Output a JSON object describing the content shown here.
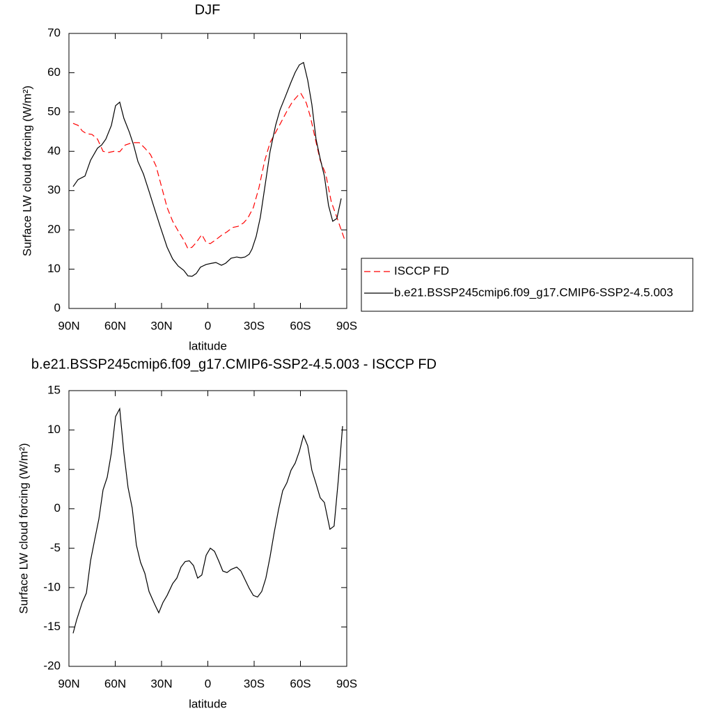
{
  "chart_data": [
    {
      "type": "line",
      "title": "DJF",
      "xlabel": "latitude",
      "ylabel": "Surface LW cloud forcing (W/m²)",
      "xlim": [
        90,
        -90
      ],
      "ylim": [
        0,
        70
      ],
      "xticks": [
        {
          "value": 90,
          "label": "90N"
        },
        {
          "value": 60,
          "label": "60N"
        },
        {
          "value": 30,
          "label": "30N"
        },
        0,
        {
          "value": -30,
          "label": "30S"
        },
        {
          "value": -60,
          "label": "60S"
        },
        {
          "value": -90,
          "label": "90S"
        }
      ],
      "yticks": [
        0,
        10,
        20,
        30,
        40,
        50,
        60,
        70
      ],
      "series": [
        {
          "name": "ISCCP FD",
          "color": "#ff0000",
          "line_style": "dashed",
          "x": [
            87.3,
            84.1,
            81.4,
            78.7,
            75.1,
            71.5,
            67.9,
            64.3,
            60.7,
            57.1,
            53.5,
            49.0,
            44.4,
            40.8,
            37.2,
            33.6,
            30.0,
            26.4,
            22.8,
            19.2,
            15.6,
            12.9,
            10.2,
            7.5,
            3.9,
            1.1,
            -1.6,
            -5.2,
            -8.8,
            -12.4,
            -16.0,
            -19.6,
            -23.2,
            -25.9,
            -29.5,
            -33.1,
            -36.7,
            -40.3,
            -43.9,
            -47.6,
            -51.2,
            -54.8,
            -58.4,
            -60.2,
            -63.8,
            -66.5,
            -69.2,
            -72.8,
            -76.4,
            -80.0,
            -83.6,
            -86.4,
            -89.1
          ],
          "values": [
            47.1,
            46.6,
            45.2,
            44.5,
            44.3,
            43.1,
            40.0,
            39.7,
            40.0,
            39.9,
            41.6,
            42.2,
            42.2,
            40.8,
            39.2,
            36.3,
            31.0,
            25.7,
            22.2,
            19.7,
            17.4,
            15.2,
            15.6,
            16.8,
            18.8,
            16.8,
            16.5,
            17.5,
            18.6,
            19.5,
            20.6,
            20.9,
            21.8,
            23.0,
            25.7,
            30.7,
            37.4,
            42.2,
            44.8,
            47.5,
            50.2,
            52.6,
            54.2,
            54.8,
            52.3,
            48.7,
            43.9,
            37.7,
            34.2,
            27.1,
            23.2,
            20.0,
            17.0
          ]
        },
        {
          "name": "b.e21.BSSP245cmip6.f09_g17.CMIP6-SSP2-4.5.003",
          "color": "#000000",
          "line_style": "solid",
          "x": [
            87.3,
            84.1,
            79.6,
            76.0,
            71.5,
            68.8,
            66.1,
            62.5,
            59.8,
            57.1,
            54.4,
            50.8,
            48.1,
            45.3,
            41.7,
            38.1,
            34.5,
            30.9,
            26.4,
            22.8,
            19.2,
            15.6,
            12.9,
            10.2,
            7.5,
            4.8,
            1.1,
            -2.5,
            -5.2,
            -8.8,
            -11.5,
            -15.1,
            -18.7,
            -21.4,
            -24.1,
            -26.8,
            -28.6,
            -31.3,
            -34.0,
            -36.7,
            -40.3,
            -43.9,
            -46.7,
            -50.3,
            -53.9,
            -56.6,
            -59.3,
            -62.0,
            -64.7,
            -67.4,
            -70.1,
            -72.8,
            -75.5,
            -78.2,
            -80.9,
            -83.6,
            -86.4
          ],
          "values": [
            31.0,
            32.8,
            33.7,
            37.7,
            40.8,
            41.6,
            43.1,
            46.6,
            51.6,
            52.5,
            48.4,
            44.8,
            41.6,
            37.4,
            34.2,
            29.8,
            25.3,
            20.9,
            15.6,
            12.6,
            10.8,
            9.7,
            8.3,
            8.2,
            8.9,
            10.5,
            11.2,
            11.5,
            11.7,
            11.0,
            11.5,
            12.8,
            13.1,
            12.9,
            13.1,
            13.8,
            15.1,
            18.3,
            23.2,
            30.3,
            39.9,
            46.6,
            50.5,
            54.0,
            57.6,
            60.1,
            62.0,
            62.6,
            58.1,
            51.9,
            43.1,
            38.1,
            33.7,
            26.2,
            22.2,
            22.9,
            28.0
          ]
        }
      ]
    },
    {
      "type": "line",
      "title": "b.e21.BSSP245cmip6.f09_g17.CMIP6-SSP2-4.5.003 - ISCCP FD",
      "xlabel": "latitude",
      "ylabel": "Surface LW cloud forcing (W/m²)",
      "xlim": [
        90,
        -90
      ],
      "ylim": [
        -20,
        15
      ],
      "xticks": [
        {
          "value": 90,
          "label": "90N"
        },
        {
          "value": 60,
          "label": "60N"
        },
        {
          "value": 30,
          "label": "30N"
        },
        0,
        {
          "value": -30,
          "label": "30S"
        },
        {
          "value": -60,
          "label": "60S"
        },
        {
          "value": -90,
          "label": "90S"
        }
      ],
      "yticks": [
        -20,
        -15,
        -10,
        -5,
        0,
        5,
        10,
        15
      ],
      "series": [
        {
          "color": "#000000",
          "line_style": "solid",
          "x": [
            87.3,
            85.0,
            81.4,
            78.7,
            76.0,
            73.3,
            70.6,
            67.9,
            65.2,
            62.5,
            59.8,
            57.1,
            54.4,
            51.7,
            49.0,
            46.3,
            43.6,
            40.8,
            38.1,
            34.5,
            31.8,
            29.1,
            26.4,
            22.8,
            20.1,
            17.4,
            14.7,
            12.0,
            9.3,
            6.6,
            3.9,
            1.1,
            -1.6,
            -4.3,
            -7.0,
            -9.7,
            -12.4,
            -15.1,
            -18.7,
            -21.4,
            -24.1,
            -26.8,
            -29.5,
            -32.2,
            -34.9,
            -37.6,
            -40.3,
            -43.0,
            -45.8,
            -48.5,
            -51.2,
            -53.9,
            -56.6,
            -59.3,
            -62.0,
            -64.7,
            -67.4,
            -70.1,
            -72.8,
            -75.5,
            -79.1,
            -81.8,
            -84.5,
            -87.3
          ],
          "values": [
            -15.8,
            -14.1,
            -11.9,
            -10.7,
            -6.6,
            -3.9,
            -1.3,
            2.4,
            4.0,
            7.1,
            11.7,
            12.7,
            7.1,
            2.7,
            0.1,
            -4.6,
            -6.8,
            -8.2,
            -10.5,
            -12.1,
            -13.2,
            -11.9,
            -11.0,
            -9.5,
            -8.8,
            -7.4,
            -6.7,
            -6.6,
            -7.2,
            -8.8,
            -8.4,
            -5.9,
            -5.0,
            -5.4,
            -6.6,
            -7.9,
            -8.1,
            -7.7,
            -7.4,
            -7.9,
            -9.0,
            -10.1,
            -11.0,
            -11.2,
            -10.5,
            -8.8,
            -6.1,
            -3.0,
            -0.1,
            2.3,
            3.3,
            4.9,
            5.8,
            7.3,
            9.3,
            8.0,
            4.9,
            3.2,
            1.4,
            0.8,
            -2.6,
            -2.2,
            3.6,
            10.5
          ]
        }
      ]
    }
  ]
}
